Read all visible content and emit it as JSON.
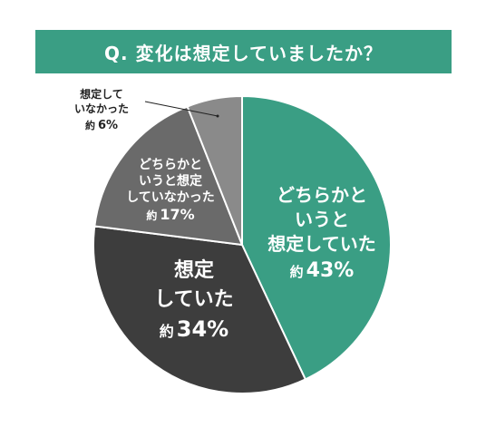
{
  "question_title": "Q. 変化は想定していましたか？",
  "colors": {
    "title_bg": "#3a9e84",
    "text_light": "#ffffff",
    "text_dark": "#222222"
  },
  "chart_data": {
    "type": "pie",
    "title": "",
    "legend": "none",
    "slices": [
      {
        "label_lines": [
          "どちらかと",
          "いうと",
          "想定していた"
        ],
        "prefix": "約",
        "value": 43,
        "value_text": "43%",
        "color": "#3a9e84",
        "label_color": "#ffffff"
      },
      {
        "label_lines": [
          "想定",
          "していた"
        ],
        "prefix": "約",
        "value": 34,
        "value_text": "34%",
        "color": "#3d3d3d",
        "label_color": "#ffffff"
      },
      {
        "label_lines": [
          "どちらかと",
          "いうと想定",
          "していなかった"
        ],
        "prefix": "約",
        "value": 17,
        "value_text": "17%",
        "color": "#6a6a6a",
        "label_color": "#ffffff"
      },
      {
        "label_lines": [
          "想定して",
          "いなかった"
        ],
        "prefix": "約",
        "value": 6,
        "value_text": "6%",
        "color": "#8a8a8a",
        "label_color": "#222222"
      }
    ]
  }
}
